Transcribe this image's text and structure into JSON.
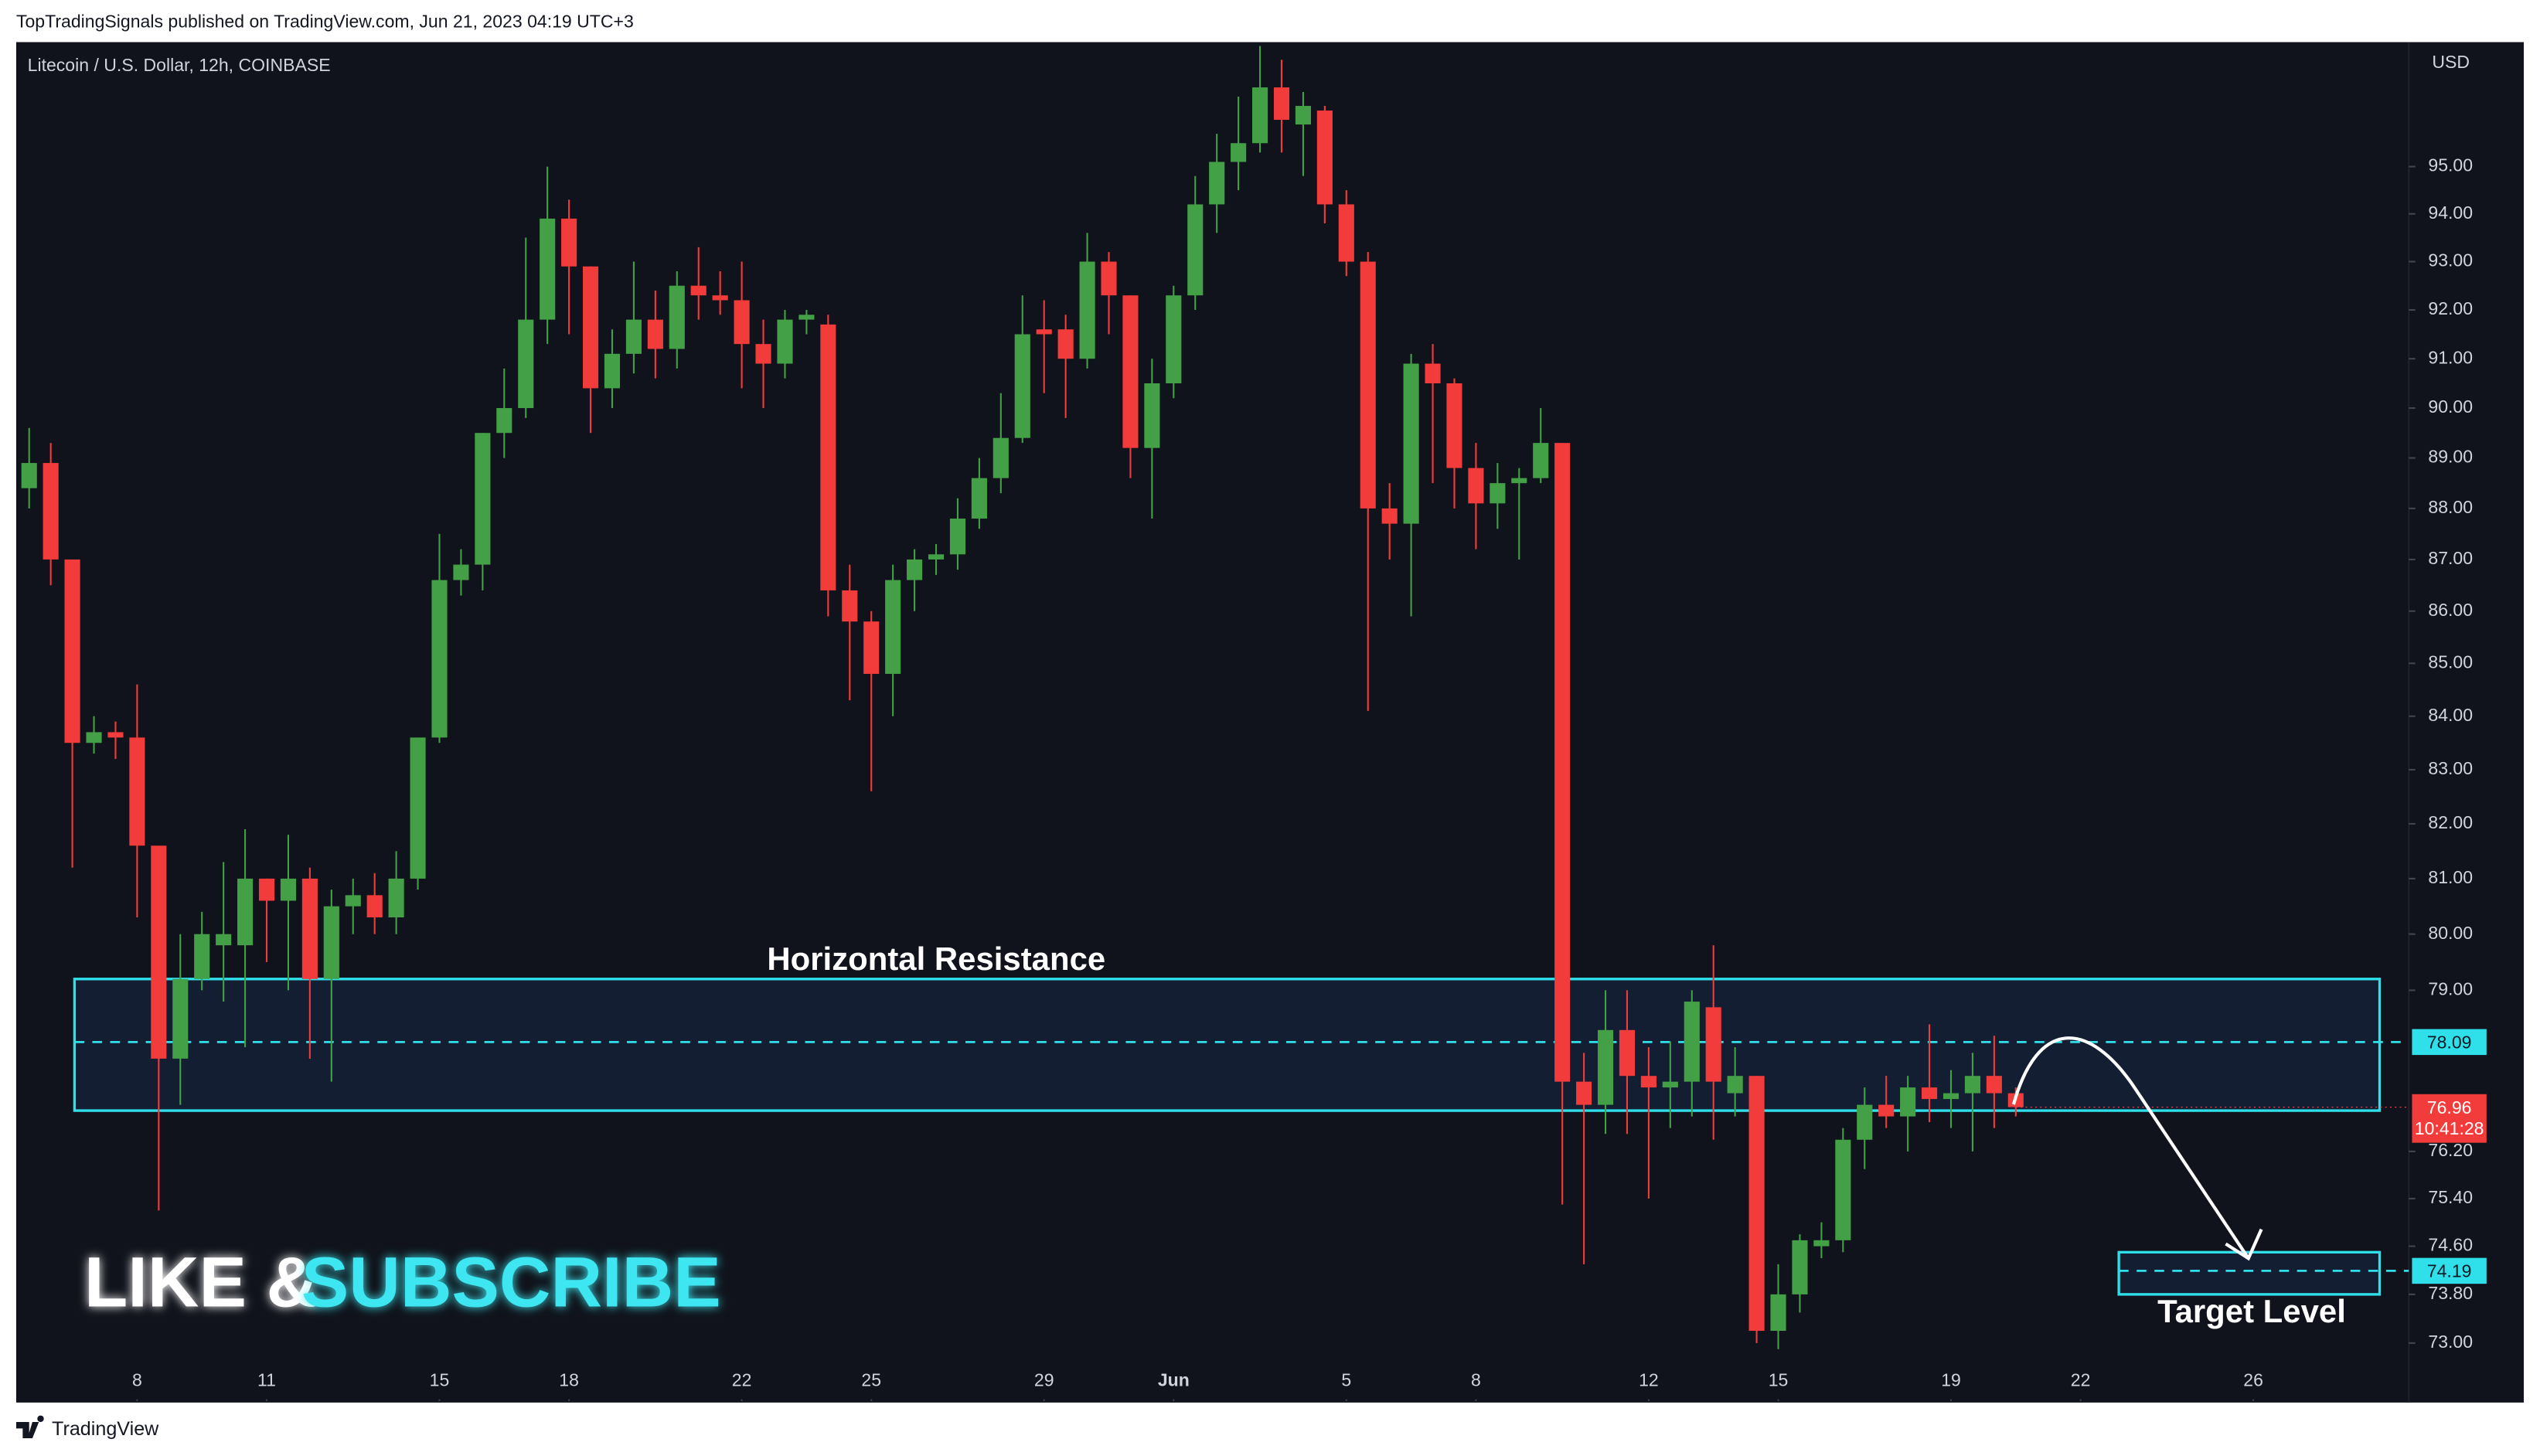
{
  "header": "TopTradingSignals published on TradingView.com, Jun 21, 2023 04:19 UTC+3",
  "footer": "TradingView",
  "promo": [
    "LIKE &",
    "SUBSCRIBE"
  ],
  "chart_data": {
    "type": "candlestick",
    "title": "Litecoin / U.S. Dollar, 12h, COINBASE",
    "currency": "USD",
    "up_color": "#43a047",
    "down_color": "#f23b3b",
    "log_scale": true,
    "grid": false,
    "open": [
      88.4,
      88.9,
      87.0,
      83.5,
      83.7,
      83.6,
      81.6,
      77.8,
      79.2,
      79.8,
      79.8,
      81.0,
      80.6,
      81.0,
      79.2,
      80.5,
      80.7,
      80.3,
      81.0,
      83.6,
      86.6,
      86.9,
      89.5,
      90.0,
      91.8,
      93.9,
      92.9,
      90.4,
      91.1,
      91.8,
      91.2,
      92.5,
      92.3,
      92.2,
      91.3,
      90.9,
      91.8,
      91.7,
      86.4,
      85.8,
      84.8,
      86.6,
      87.0,
      87.1,
      87.8,
      88.6,
      89.4,
      91.6,
      91.6,
      91.0,
      93.0,
      92.3,
      89.2,
      90.5,
      92.3,
      94.2,
      95.1,
      95.5,
      96.7,
      95.9,
      96.2,
      94.2,
      93.0,
      88.0,
      87.7,
      90.9,
      90.5,
      88.8,
      88.1,
      88.5,
      88.6,
      89.3,
      77.4,
      77.0,
      78.3,
      77.5,
      77.3,
      77.4,
      78.7,
      77.2,
      77.5,
      73.2,
      73.8,
      74.6,
      74.7,
      76.4,
      77.0,
      76.8,
      77.3,
      77.1,
      77.2,
      77.5,
      77.2
    ],
    "high": [
      89.6,
      89.3,
      87.0,
      84.0,
      83.9,
      84.6,
      81.6,
      80.0,
      80.4,
      81.3,
      81.9,
      81.0,
      81.8,
      81.2,
      80.8,
      81.0,
      81.1,
      81.5,
      83.6,
      87.5,
      87.2,
      89.5,
      90.8,
      93.5,
      95.0,
      94.3,
      92.9,
      91.6,
      93.0,
      92.4,
      92.8,
      93.3,
      92.8,
      93.0,
      91.8,
      92.0,
      92.0,
      91.9,
      86.9,
      86.0,
      86.9,
      87.2,
      87.3,
      88.2,
      89.0,
      90.3,
      92.3,
      92.2,
      91.9,
      93.6,
      93.2,
      92.3,
      91.0,
      92.5,
      94.8,
      95.7,
      96.5,
      97.6,
      97.3,
      96.6,
      96.3,
      94.5,
      93.2,
      88.5,
      91.1,
      91.3,
      90.6,
      89.3,
      88.9,
      88.8,
      90.0,
      89.3,
      77.9,
      79.0,
      79.0,
      78.0,
      78.1,
      79.0,
      79.8,
      78.0,
      77.5,
      74.3,
      74.8,
      75.0,
      76.6,
      77.3,
      77.5,
      77.5,
      78.4,
      77.6,
      77.9,
      78.2,
      77.3
    ],
    "low": [
      88.0,
      86.5,
      81.2,
      83.3,
      83.2,
      80.3,
      75.2,
      77.0,
      79.0,
      78.8,
      78.0,
      79.5,
      79.0,
      77.8,
      77.4,
      80.0,
      80.0,
      80.0,
      80.8,
      83.5,
      86.3,
      86.4,
      89.0,
      89.8,
      91.3,
      91.5,
      89.5,
      90.0,
      90.7,
      90.6,
      90.8,
      91.8,
      91.9,
      90.4,
      90.0,
      90.6,
      91.5,
      85.9,
      84.3,
      82.6,
      84.0,
      86.0,
      86.7,
      86.8,
      87.6,
      88.3,
      89.3,
      90.3,
      89.8,
      90.8,
      91.5,
      88.6,
      87.8,
      90.2,
      92.0,
      93.6,
      94.5,
      95.3,
      95.3,
      94.8,
      93.8,
      92.7,
      84.1,
      87.0,
      85.9,
      88.5,
      88.0,
      87.2,
      87.6,
      87.0,
      88.5,
      75.3,
      74.3,
      76.5,
      76.5,
      75.4,
      76.6,
      76.8,
      76.4,
      76.8,
      73.0,
      72.9,
      73.5,
      74.4,
      74.5,
      75.9,
      76.6,
      76.2,
      76.7,
      76.6,
      76.2,
      76.6,
      76.8
    ],
    "close": [
      88.9,
      87.0,
      83.5,
      83.7,
      83.6,
      81.6,
      77.8,
      79.2,
      80.0,
      80.0,
      81.0,
      80.6,
      81.0,
      79.2,
      80.5,
      80.7,
      80.3,
      81.0,
      83.6,
      86.6,
      86.9,
      89.5,
      90.0,
      91.8,
      93.9,
      92.9,
      90.4,
      91.1,
      91.8,
      91.2,
      92.5,
      92.3,
      92.2,
      91.3,
      90.9,
      91.8,
      91.9,
      86.4,
      85.8,
      84.8,
      86.6,
      87.0,
      87.1,
      87.8,
      88.6,
      89.4,
      91.5,
      91.5,
      91.0,
      93.0,
      92.3,
      89.2,
      90.5,
      92.3,
      94.2,
      95.1,
      95.5,
      96.7,
      96.0,
      96.3,
      94.2,
      93.0,
      88.0,
      87.7,
      90.9,
      90.5,
      88.8,
      88.1,
      88.5,
      88.6,
      89.3,
      77.4,
      77.0,
      78.3,
      77.5,
      77.3,
      77.4,
      78.8,
      77.4,
      77.5,
      73.2,
      73.8,
      74.7,
      74.7,
      76.4,
      77.0,
      76.8,
      77.3,
      77.1,
      77.2,
      77.5,
      77.2,
      76.96
    ],
    "countdown": "10:41:28",
    "ylim": [
      72.06,
      97.65
    ],
    "yticks": [
      {
        "value": 95,
        "label": "95.00"
      },
      {
        "value": 94,
        "label": "94.00"
      },
      {
        "value": 93,
        "label": "93.00"
      },
      {
        "value": 92,
        "label": "92.00"
      },
      {
        "value": 91,
        "label": "91.00"
      },
      {
        "value": 90,
        "label": "90.00"
      },
      {
        "value": 89,
        "label": "89.00"
      },
      {
        "value": 88,
        "label": "88.00"
      },
      {
        "value": 87,
        "label": "87.00"
      },
      {
        "value": 86,
        "label": "86.00"
      },
      {
        "value": 85,
        "label": "85.00"
      },
      {
        "value": 84,
        "label": "84.00"
      },
      {
        "value": 83,
        "label": "83.00"
      },
      {
        "value": 82,
        "label": "82.00"
      },
      {
        "value": 81,
        "label": "81.00"
      },
      {
        "value": 80,
        "label": "80.00"
      },
      {
        "value": 79,
        "label": "79.00"
      },
      {
        "value": 76.2,
        "label": "76.20"
      },
      {
        "value": 75.4,
        "label": "75.40"
      },
      {
        "value": 74.6,
        "label": "74.60"
      },
      {
        "value": 73.8,
        "label": "73.80"
      },
      {
        "value": 73,
        "label": "73.00"
      }
    ],
    "xlim": [
      -0.6,
      110.2
    ],
    "xticks": [
      {
        "value": 5,
        "label": "8"
      },
      {
        "value": 11,
        "label": "11"
      },
      {
        "value": 19,
        "label": "15"
      },
      {
        "value": 25,
        "label": "18"
      },
      {
        "value": 33,
        "label": "22"
      },
      {
        "value": 39,
        "label": "25"
      },
      {
        "value": 47,
        "label": "29"
      },
      {
        "value": 53,
        "label": "Jun"
      },
      {
        "value": 61,
        "label": "5"
      },
      {
        "value": 67,
        "label": "8"
      },
      {
        "value": 75,
        "label": "12"
      },
      {
        "value": 81,
        "label": "15"
      },
      {
        "value": 89,
        "label": "19"
      },
      {
        "value": 95,
        "label": "22"
      },
      {
        "value": 103,
        "label": "26"
      }
    ],
    "resistance": {
      "label": "Horizontal Resistance",
      "top": 79.2,
      "bottom": 76.9,
      "level": 78.09
    },
    "target": {
      "label": "Target Level",
      "top": 74.5,
      "bottom": 73.8,
      "level": 74.19
    }
  }
}
